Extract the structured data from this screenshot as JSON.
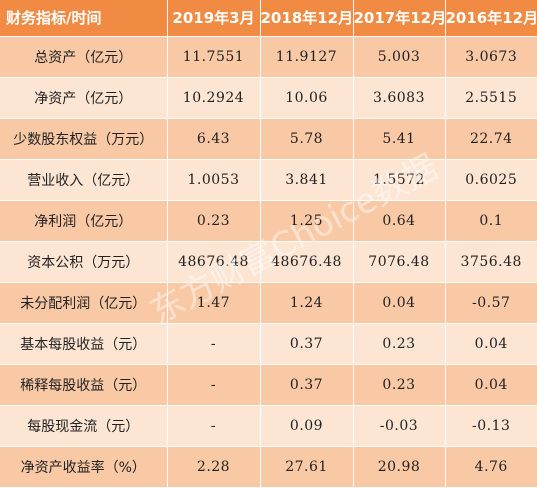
{
  "header": {
    "label": "财务指标/时间",
    "periods": [
      "2019年3月",
      "2018年12月",
      "2017年12月",
      "2016年12月"
    ]
  },
  "rows": [
    {
      "label": "总资产（亿元）",
      "values": [
        "11.7551",
        "11.9127",
        "5.003",
        "3.0673"
      ]
    },
    {
      "label": "净资产（亿元）",
      "values": [
        "10.2924",
        "10.06",
        "3.6083",
        "2.5515"
      ]
    },
    {
      "label": "少数股东权益（万元）",
      "values": [
        "6.43",
        "5.78",
        "5.41",
        "22.74"
      ]
    },
    {
      "label": "营业收入（亿元）",
      "values": [
        "1.0053",
        "3.841",
        "1.5572",
        "0.6025"
      ]
    },
    {
      "label": "净利润（亿元）",
      "values": [
        "0.23",
        "1.25",
        "0.64",
        "0.1"
      ]
    },
    {
      "label": "资本公积（万元）",
      "values": [
        "48676.48",
        "48676.48",
        "7076.48",
        "3756.48"
      ]
    },
    {
      "label": "未分配利润（亿元）",
      "values": [
        "1.47",
        "1.24",
        "0.04",
        "-0.57"
      ]
    },
    {
      "label": "基本每股收益（元）",
      "values": [
        "-",
        "0.37",
        "0.23",
        "0.04"
      ]
    },
    {
      "label": "稀释每股收益（元）",
      "values": [
        "-",
        "0.37",
        "0.23",
        "0.04"
      ]
    },
    {
      "label": "每股现金流（元）",
      "values": [
        "-",
        "0.09",
        "-0.03",
        "-0.13"
      ]
    },
    {
      "label": "净资产收益率（%）",
      "values": [
        "2.28",
        "27.61",
        "20.98",
        "4.76"
      ]
    }
  ],
  "watermark": "东方财富Choice数据",
  "colors": {
    "header_bg": "#f18b43",
    "row_dark": "#f9c9a6",
    "row_light": "#fde5d4"
  }
}
